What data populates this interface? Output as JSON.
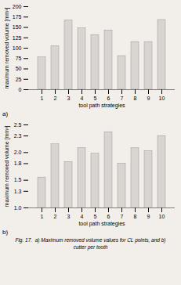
{
  "chart_data": [
    {
      "type": "bar",
      "categories": [
        1,
        2,
        3,
        4,
        5,
        6,
        7,
        8,
        9,
        10
      ],
      "values": [
        78,
        105,
        167,
        148,
        132,
        143,
        81,
        115,
        115,
        168
      ],
      "xlabel": "tool path strategies",
      "ylabel": "maximum removed volume [mm³]",
      "ylim": [
        0,
        200
      ],
      "yticks": [
        0,
        25,
        50,
        75,
        100,
        125,
        150,
        175,
        200
      ],
      "color": "#d8d5d0",
      "grid": false,
      "annotations": [
        "a)"
      ]
    },
    {
      "type": "bar",
      "categories": [
        1,
        2,
        3,
        4,
        5,
        6,
        7,
        8,
        9,
        10
      ],
      "values": [
        1.55,
        2.15,
        1.83,
        2.08,
        1.98,
        2.37,
        1.8,
        2.08,
        2.03,
        2.3
      ],
      "xlabel": "tool path strategies",
      "ylabel": "maximum removed volume [mm³]",
      "ylim": [
        1.0,
        2.5
      ],
      "yticks": [
        {
          "value": 1.0,
          "label": "1.0"
        },
        1.3,
        1.5,
        1.8,
        {
          "value": 2.0,
          "label": "2.0"
        },
        2.3,
        2.5
      ],
      "color": "#d8d5d0",
      "grid": false,
      "annotations": [
        "b)"
      ],
      "caption": [
        "Fig. 17.  a) Maximum removed volume values for CL points, and b)",
        "cutter per tooth"
      ]
    }
  ]
}
